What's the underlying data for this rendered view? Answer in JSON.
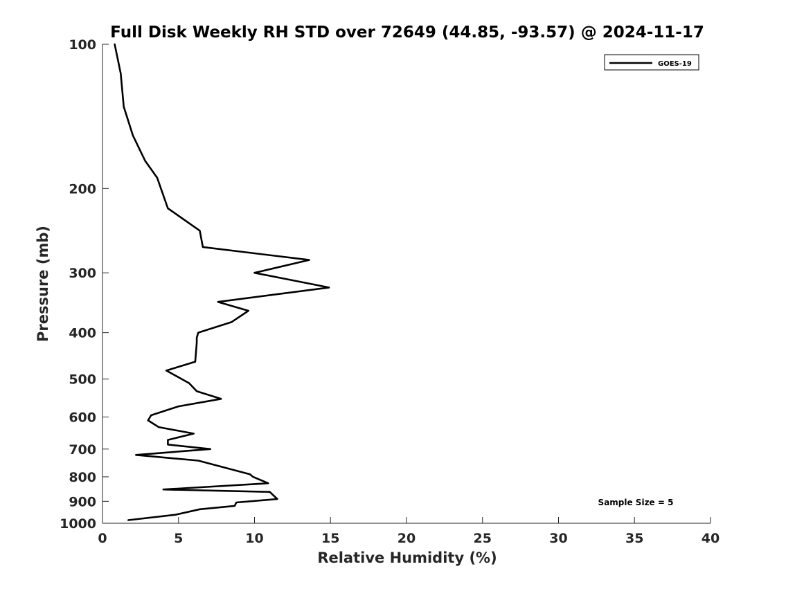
{
  "chart_data": {
    "type": "line",
    "title": "Full Disk Weekly RH STD over 72649 (44.85, -93.57) @ 2024-11-17",
    "xlabel": "Relative Humidity (%)",
    "ylabel": "Pressure (mb)",
    "xlim": [
      0,
      40
    ],
    "ylim": [
      100,
      1000
    ],
    "y_scale": "log",
    "y_reversed": true,
    "grid": false,
    "legend_position": "top-right",
    "x_ticks": [
      0,
      5,
      10,
      15,
      20,
      25,
      30,
      35,
      40
    ],
    "y_ticks": [
      100,
      200,
      300,
      400,
      500,
      600,
      700,
      800,
      900,
      1000
    ],
    "annotation": "Sample Size = 5",
    "series": [
      {
        "name": "GOES-19",
        "color": "#000000",
        "x": [
          0.8,
          1.2,
          1.4,
          2.0,
          2.8,
          3.6,
          4.3,
          6.4,
          6.6,
          13.6,
          10.0,
          14.9,
          7.6,
          9.6,
          8.5,
          6.3,
          6.2,
          6.2,
          6.1,
          4.2,
          5.7,
          6.2,
          7.8,
          5.0,
          3.2,
          3.0,
          3.7,
          6.0,
          4.3,
          4.3,
          7.1,
          2.2,
          6.3,
          9.7,
          9.9,
          10.9,
          4.0,
          11.0,
          11.5,
          8.8,
          8.7,
          6.4,
          4.8,
          1.7
        ],
        "y": [
          100,
          115,
          135,
          155,
          175,
          190,
          220,
          245,
          265,
          282,
          300,
          322,
          345,
          360,
          380,
          400,
          410,
          420,
          460,
          480,
          510,
          530,
          550,
          570,
          595,
          610,
          630,
          650,
          670,
          685,
          700,
          720,
          740,
          790,
          800,
          825,
          850,
          860,
          890,
          905,
          920,
          935,
          960,
          985
        ]
      }
    ]
  }
}
